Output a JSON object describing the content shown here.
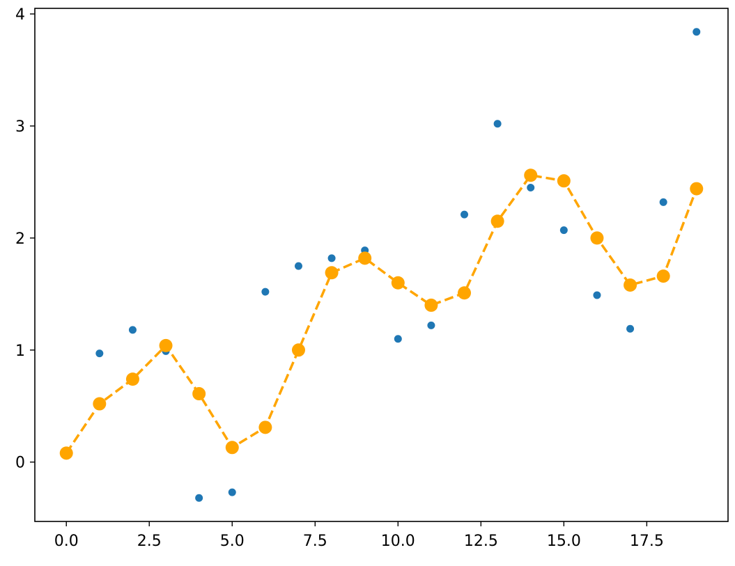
{
  "chart_data": {
    "type": "scatter",
    "xlim": [
      -0.95,
      19.95
    ],
    "ylim": [
      -0.53,
      4.05
    ],
    "grid": false,
    "x_ticks": [
      0.0,
      2.5,
      5.0,
      7.5,
      10.0,
      12.5,
      15.0,
      17.5
    ],
    "x_tick_labels": [
      "0.0",
      "2.5",
      "5.0",
      "7.5",
      "10.0",
      "12.5",
      "15.0",
      "17.5"
    ],
    "y_ticks": [
      0,
      1,
      2,
      3,
      4
    ],
    "y_tick_labels": [
      "0",
      "1",
      "2",
      "3",
      "4"
    ],
    "series": [
      {
        "kind": "scatter",
        "color": "#1f77b4",
        "x": [
          1,
          2,
          3,
          4,
          5,
          6,
          7,
          8,
          9,
          10,
          11,
          12,
          13,
          14,
          15,
          16,
          17,
          18,
          19
        ],
        "y": [
          0.97,
          1.18,
          0.99,
          -0.32,
          -0.27,
          1.52,
          1.75,
          1.82,
          1.89,
          1.1,
          1.22,
          2.21,
          3.02,
          2.45,
          2.07,
          1.49,
          1.19,
          2.32,
          3.84
        ]
      },
      {
        "kind": "line-dashed-markers",
        "color": "#ffa500",
        "x": [
          0,
          1,
          2,
          3,
          4,
          5,
          6,
          7,
          8,
          9,
          10,
          11,
          12,
          13,
          14,
          15,
          16,
          17,
          18,
          19
        ],
        "y": [
          0.08,
          0.52,
          0.74,
          1.04,
          0.61,
          0.13,
          0.31,
          1.0,
          1.69,
          1.82,
          1.6,
          1.4,
          1.51,
          2.15,
          2.56,
          2.51,
          2.0,
          1.58,
          1.66,
          2.44
        ]
      }
    ]
  }
}
